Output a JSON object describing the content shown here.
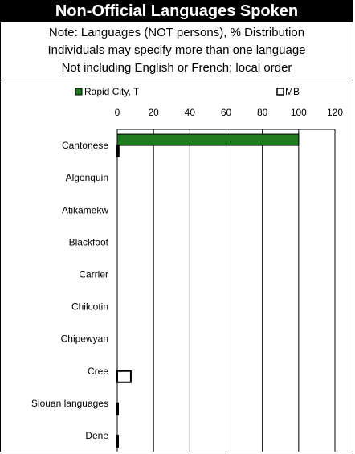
{
  "header": {
    "title": "Non-Official Languages Spoken",
    "notes": [
      "Note: Languages (NOT persons), % Distribution",
      "Individuals may specify more than one language",
      "Not including English or French; local order"
    ]
  },
  "chart_data": {
    "type": "bar",
    "orientation": "horizontal",
    "categories": [
      "Cantonese",
      "Algonquin",
      "Atikamekw",
      "Blackfoot",
      "Carrier",
      "Chilcotin",
      "Chipewyan",
      "Cree",
      "Siouan languages",
      "Dene"
    ],
    "series": [
      {
        "name": "Rapid City, T",
        "color": "#1e7b1e",
        "values": [
          100,
          0,
          0,
          0,
          0,
          0,
          0,
          0,
          0,
          0
        ]
      },
      {
        "name": "MB",
        "color": "#ffffff",
        "values": [
          0.8,
          0,
          0,
          0,
          0,
          0,
          0,
          7.5,
          0.3,
          0.3
        ]
      }
    ],
    "xlim": [
      0,
      120
    ],
    "xticks": [
      0,
      20,
      40,
      60,
      80,
      100,
      120
    ],
    "grid": true,
    "legend_position": "top"
  }
}
